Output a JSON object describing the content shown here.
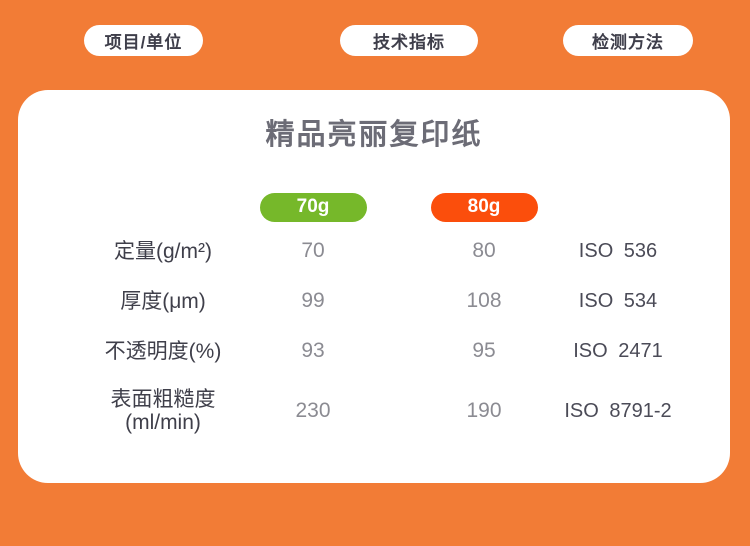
{
  "page": {
    "background_color": "#f27c36"
  },
  "header": {
    "pills": [
      {
        "label": "项目/单位"
      },
      {
        "label": "技术指标"
      },
      {
        "label": "检测方法"
      }
    ]
  },
  "card": {
    "title": "精品亮丽复印纸",
    "columns": [
      {
        "label": "70g",
        "color": "#76b82a"
      },
      {
        "label": "80g",
        "color": "#fb4e0c"
      }
    ],
    "rows": [
      {
        "label": "定量(g/m²)",
        "v70": "70",
        "v80": "80",
        "method": "ISO 536"
      },
      {
        "label": "厚度(μm)",
        "v70": "99",
        "v80": "108",
        "method": "ISO 534"
      },
      {
        "label": "不透明度(%)",
        "v70": "93",
        "v80": "95",
        "method": "ISO 2471"
      },
      {
        "label": "表面粗糙度",
        "label2": "(ml/min)",
        "v70": "230",
        "v80": "190",
        "method": "ISO 8791-2"
      }
    ]
  },
  "chart_data": {
    "type": "table",
    "title": "精品亮丽复印纸",
    "columns": [
      "项目/单位",
      "70g",
      "80g",
      "检测方法"
    ],
    "rows": [
      [
        "定量(g/m²)",
        70,
        80,
        "ISO 536"
      ],
      [
        "厚度(μm)",
        99,
        108,
        "ISO 534"
      ],
      [
        "不透明度(%)",
        93,
        95,
        "ISO 2471"
      ],
      [
        "表面粗糙度(ml/min)",
        230,
        190,
        "ISO 8791-2"
      ]
    ]
  }
}
